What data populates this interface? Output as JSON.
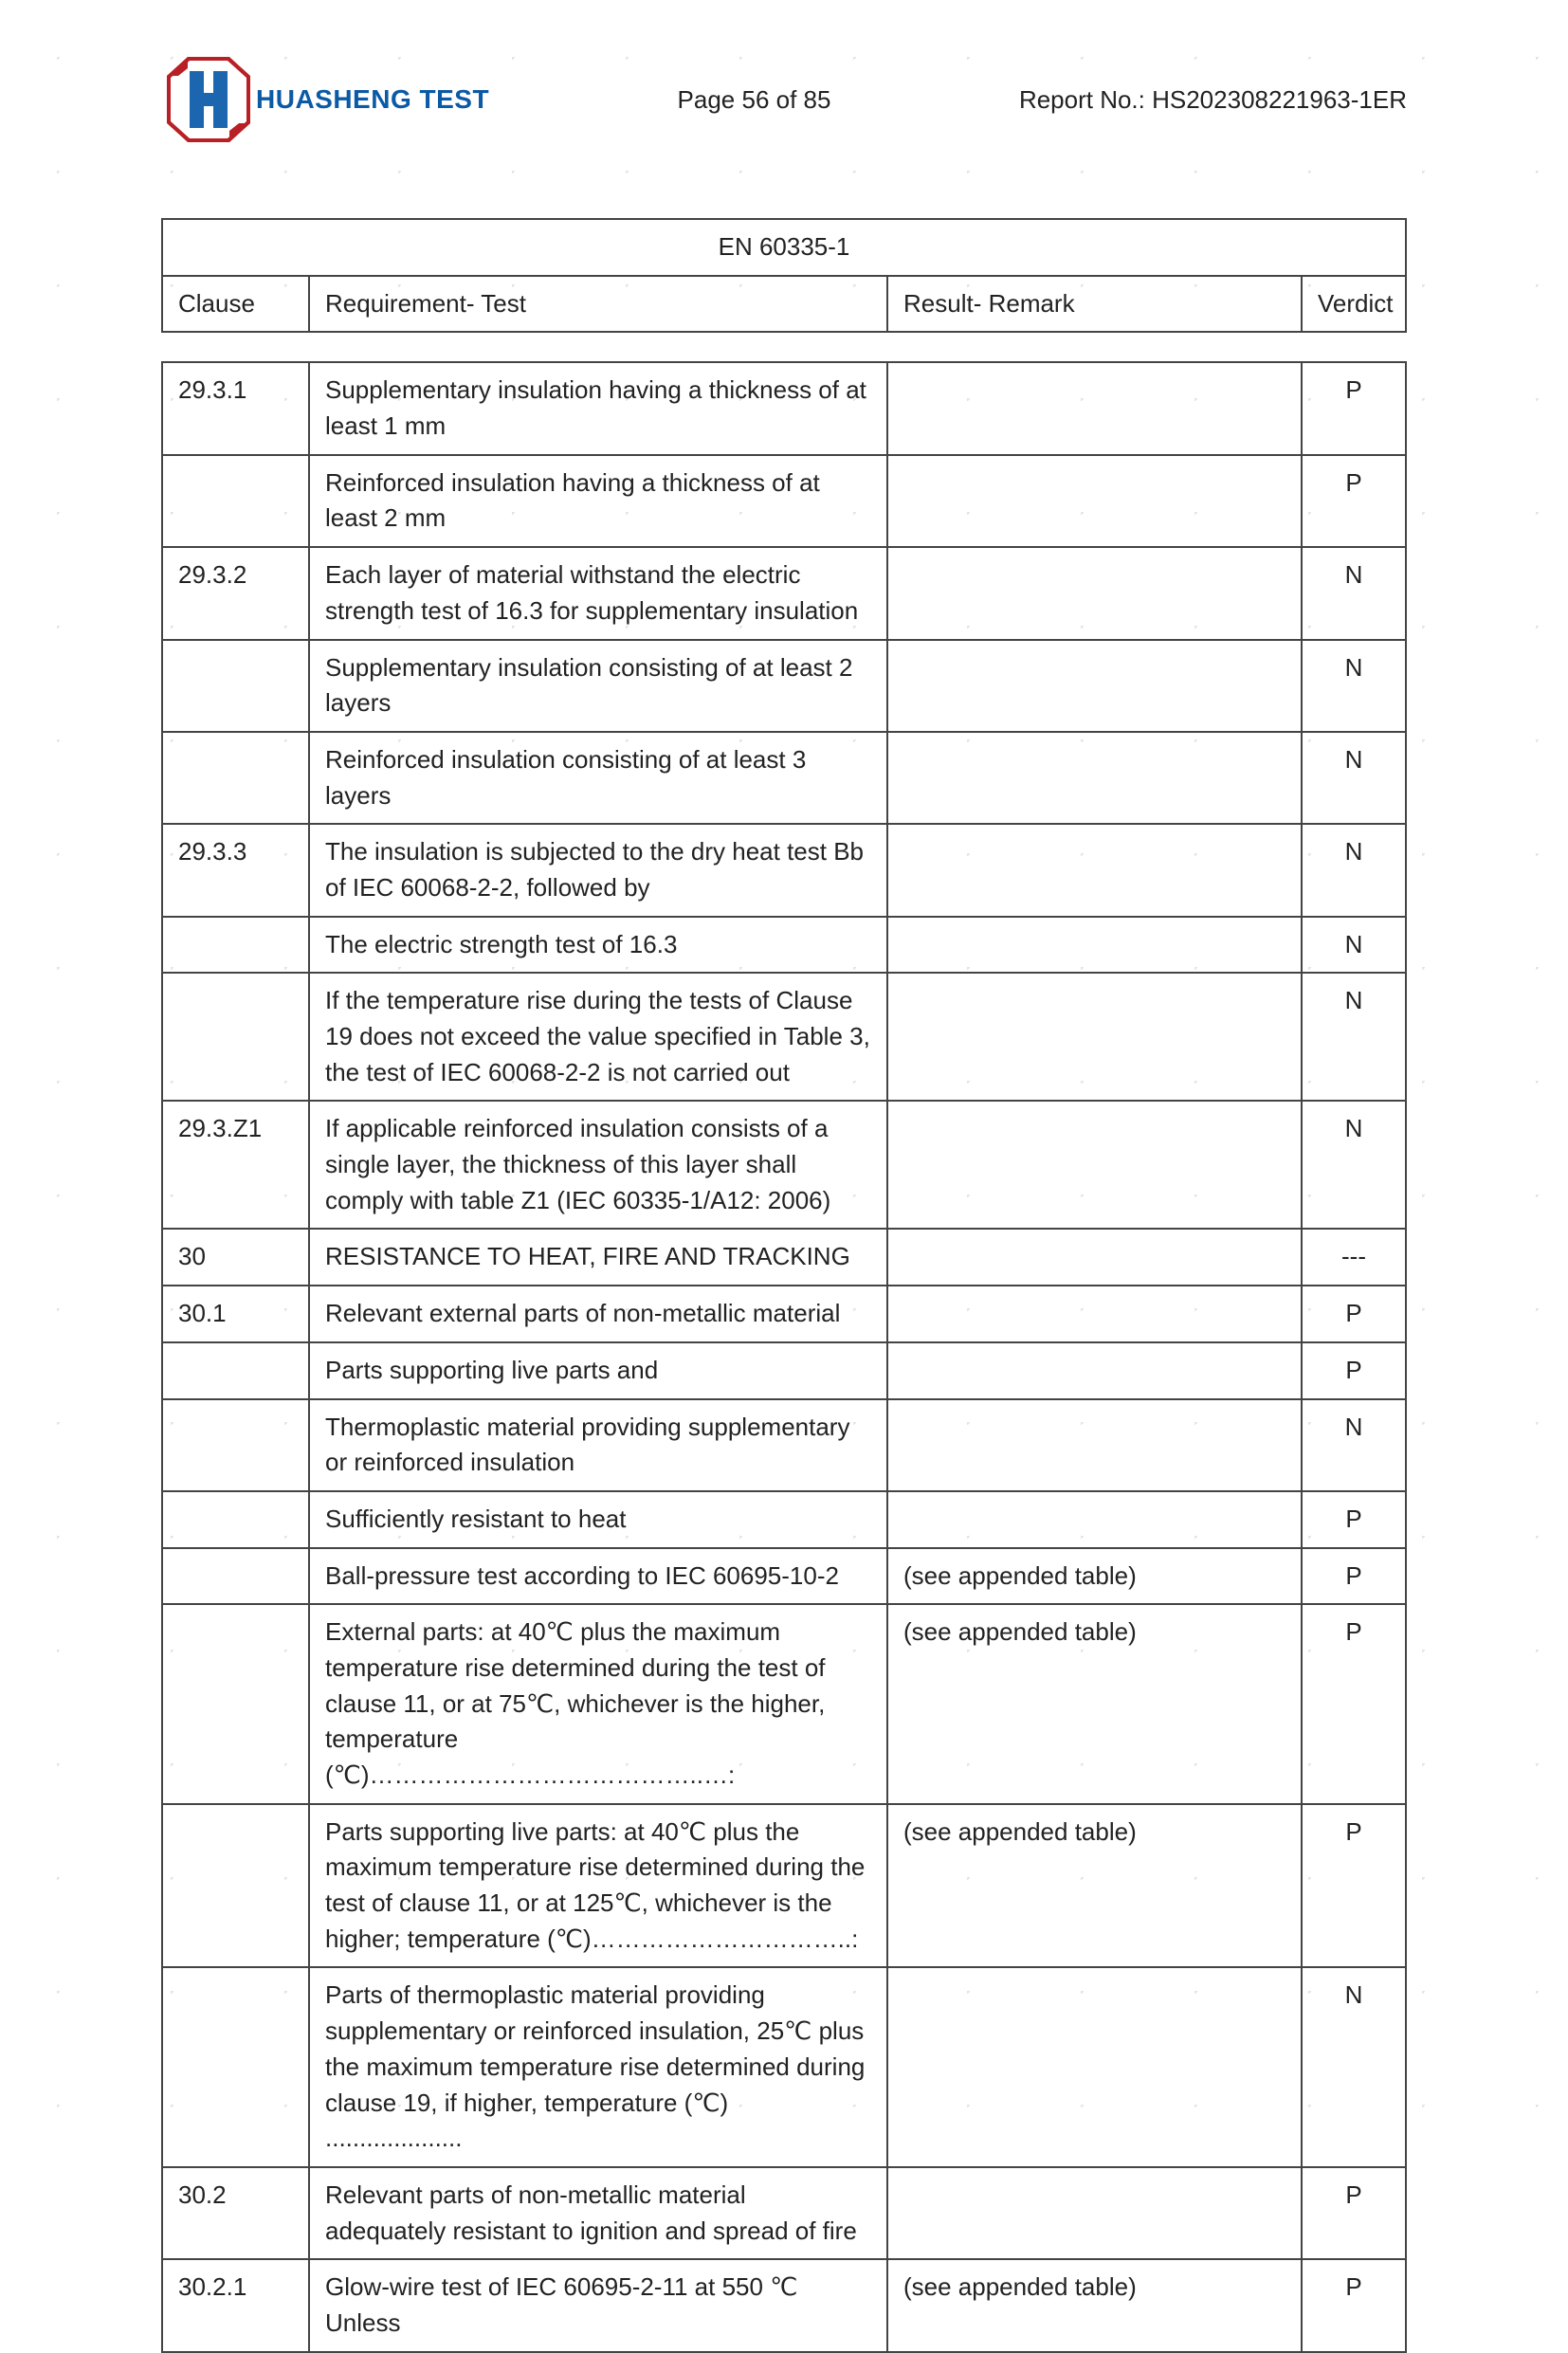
{
  "brand": "HUASHENG TEST",
  "page_label": "Page 56 of 85",
  "report_no": "Report No.: HS202308221963-1ER",
  "standard": "EN 60335-1",
  "header": {
    "clause": "Clause",
    "requirement": "Requirement- Test",
    "result": "Result- Remark",
    "verdict": "Verdict"
  },
  "rows": [
    {
      "clause": "29.3.1",
      "req": "Supplementary insulation having a thickness of at least 1 mm",
      "res": "",
      "verdict": "P"
    },
    {
      "clause": "",
      "req": "Reinforced insulation having a thickness of at least 2 mm",
      "res": "",
      "verdict": "P"
    },
    {
      "clause": "29.3.2",
      "req": "Each layer of material withstand the electric strength test of 16.3 for supplementary insulation",
      "res": "",
      "verdict": "N"
    },
    {
      "clause": "",
      "req": "Supplementary insulation consisting of at least 2 layers",
      "res": "",
      "verdict": "N"
    },
    {
      "clause": "",
      "req": "Reinforced insulation consisting of at least 3 layers",
      "res": "",
      "verdict": "N"
    },
    {
      "clause": "29.3.3",
      "req": "The insulation is subjected to the dry heat test Bb of IEC 60068-2-2, followed by",
      "res": "",
      "verdict": "N"
    },
    {
      "clause": "",
      "req": "The electric strength test of 16.3",
      "res": "",
      "verdict": "N"
    },
    {
      "clause": "",
      "req": "If the temperature rise during the tests of Clause 19 does not exceed the value specified in Table 3, the test of IEC 60068-2-2 is not carried out",
      "res": "",
      "verdict": "N"
    },
    {
      "clause": "29.3.Z1",
      "req": "If applicable reinforced insulation consists of a single layer, the thickness of this layer shall comply with table Z1 (IEC 60335-1/A12: 2006)",
      "res": "",
      "verdict": "N"
    },
    {
      "clause": "30",
      "req": "RESISTANCE TO HEAT, FIRE AND TRACKING",
      "res": "",
      "verdict": "---"
    },
    {
      "clause": "30.1",
      "req": "Relevant external parts of non-metallic material",
      "res": "",
      "verdict": "P"
    },
    {
      "clause": "",
      "req": "Parts supporting live parts and",
      "res": "",
      "verdict": "P"
    },
    {
      "clause": "",
      "req": "Thermoplastic material providing supplementary or reinforced insulation",
      "res": "",
      "verdict": "N"
    },
    {
      "clause": "",
      "req": "Sufficiently resistant to heat",
      "res": "",
      "verdict": "P"
    },
    {
      "clause": "",
      "req": "Ball-pressure test according to IEC 60695-10-2",
      "res": "(see appended table)",
      "verdict": "P"
    },
    {
      "clause": "",
      "req": "External parts: at 40℃ plus the maximum temperature rise determined during the test of clause 11, or at 75℃, whichever is the higher, temperature (℃)…………………………………..…:",
      "res": "(see appended table)",
      "verdict": "P"
    },
    {
      "clause": "",
      "req": "Parts supporting live parts: at 40℃ plus the maximum temperature rise determined during the test of clause 11, or at 125℃, whichever is the higher; temperature (℃)…………………………..:",
      "res": "(see appended table)",
      "verdict": "P"
    },
    {
      "clause": "",
      "req": "Parts of thermoplastic material providing supplementary or reinforced insulation, 25℃ plus the maximum temperature rise determined during clause 19, if higher, temperature (℃) ....................",
      "res": "",
      "verdict": "N"
    },
    {
      "clause": "30.2",
      "req": "Relevant parts of non-metallic material adequately resistant to ignition and spread of fire",
      "res": "",
      "verdict": "P"
    },
    {
      "clause": "30.2.1",
      "req": "Glow-wire test of IEC 60695-2-11 at 550 ℃ Unless",
      "res": "(see appended table)",
      "verdict": "P"
    }
  ],
  "colors": {
    "brand": "#0b5aa5",
    "logo_red": "#b82025",
    "logo_blue": "#1c66b0",
    "border": "#444444",
    "text": "#222222"
  }
}
